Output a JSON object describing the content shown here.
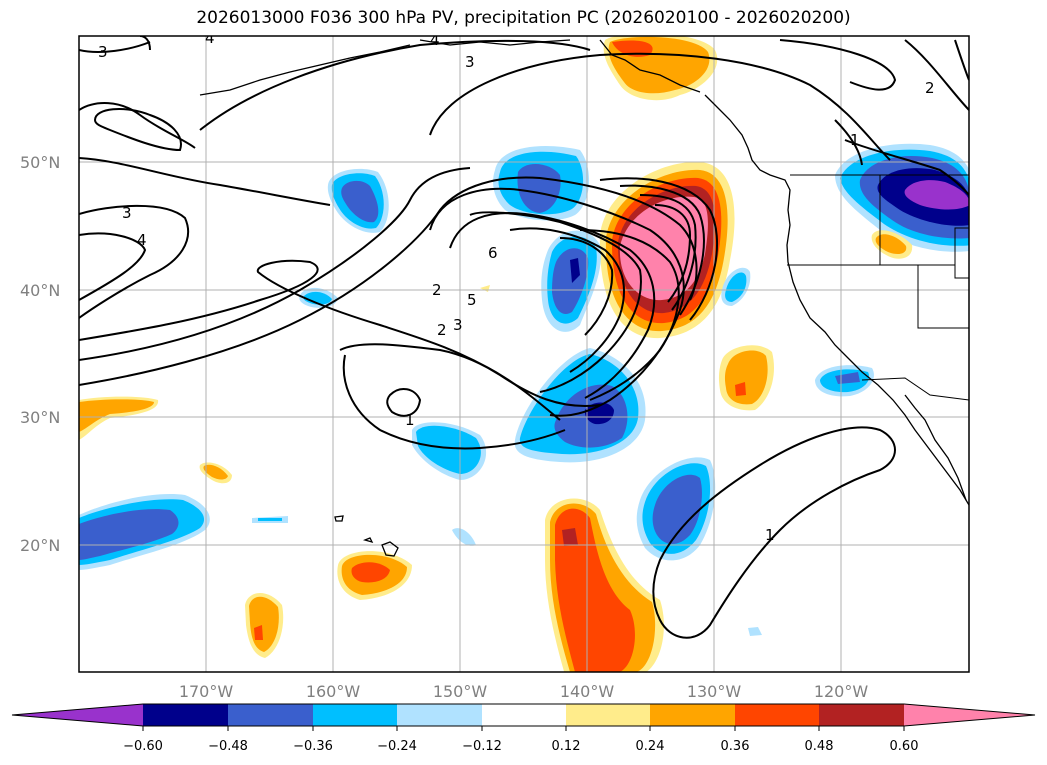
{
  "title": "2026013000 F036 300 hPa PV, precipitation PC (2026020100 - 2026020200)",
  "map": {
    "lat_labels": [
      "50°N",
      "40°N",
      "30°N",
      "20°N"
    ],
    "lon_labels": [
      "170°W",
      "160°W",
      "150°W",
      "140°W",
      "130°W",
      "120°W"
    ],
    "contour_labels": [
      "3",
      "4",
      "3",
      "4",
      "3",
      "4",
      "5",
      "6",
      "2",
      "3",
      "2",
      "1",
      "1",
      "2",
      "1"
    ]
  },
  "colorbar": {
    "ticks": [
      "−0.60",
      "−0.48",
      "−0.36",
      "−0.24",
      "−0.12",
      "0.12",
      "0.24",
      "0.36",
      "0.48",
      "0.60"
    ],
    "colors": [
      "#9932cc",
      "#00008b",
      "#3a5fcd",
      "#00bfff",
      "#b0e2ff",
      "#ffffff",
      "#ffec8b",
      "#ffa500",
      "#ff4500",
      "#b22222",
      "#ff82ab"
    ]
  }
}
